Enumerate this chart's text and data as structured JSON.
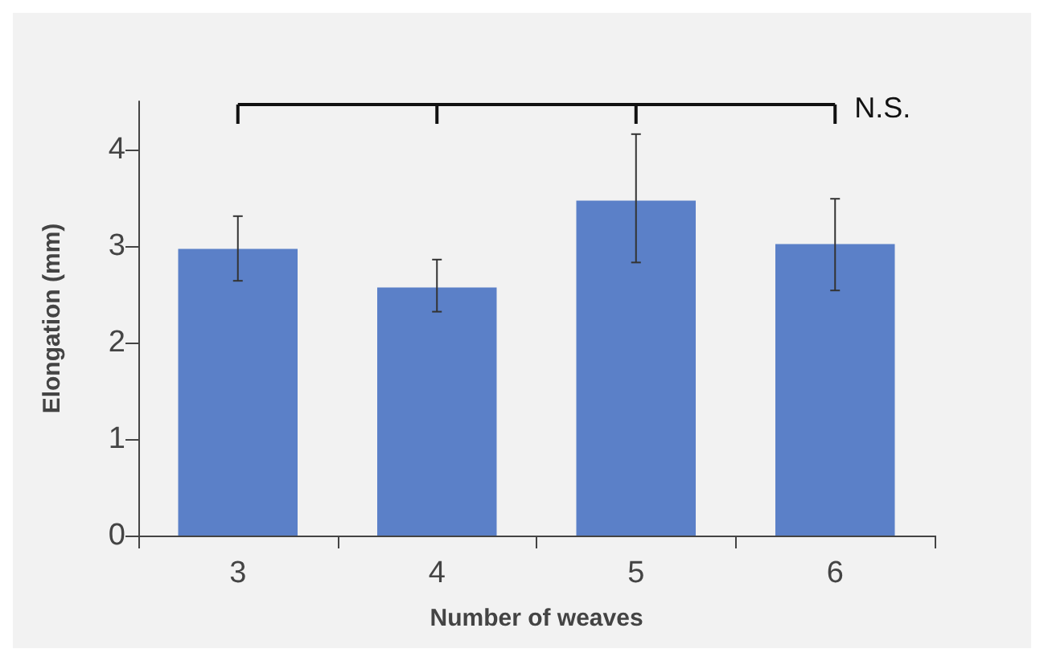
{
  "chart_data": {
    "type": "bar",
    "xlabel": "Number of weaves",
    "ylabel": "Elongation (mm)",
    "categories": [
      "3",
      "4",
      "5",
      "6"
    ],
    "values": [
      2.97,
      2.57,
      3.47,
      3.02
    ],
    "errors": [
      [
        2.64,
        3.31
      ],
      [
        2.32,
        2.86
      ],
      [
        2.83,
        4.16
      ],
      [
        2.54,
        3.49
      ]
    ],
    "color": "#5b80c8",
    "ylim": [
      0,
      4.5
    ],
    "yticks": [
      0,
      1,
      2,
      3,
      4
    ],
    "grid": false,
    "annotations": [
      "N.S."
    ]
  }
}
